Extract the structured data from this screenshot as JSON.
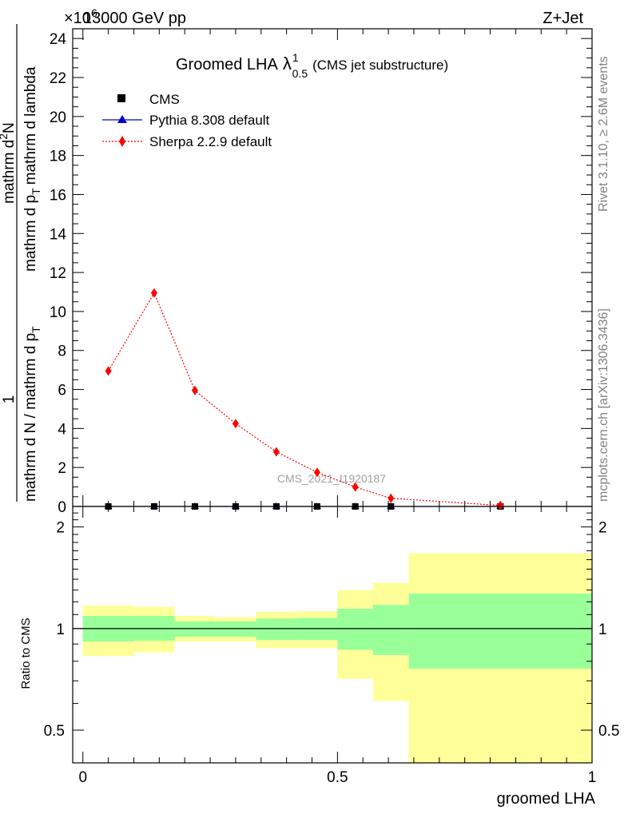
{
  "header": {
    "left": "13000 GeV pp",
    "right": "Z+Jet",
    "exponent": "×10",
    "exponent_power": "6"
  },
  "title": {
    "main": "Groomed LHA",
    "lambda": "λ",
    "lambda_sub": "0.5",
    "lambda_sup": "1",
    "note": "(CMS jet substructure)"
  },
  "side_labels": {
    "rivet": "Rivet 3.1.10, ≥ 2.6M events",
    "mcplots": "mcplots.cern.ch [arXiv:1306.3436]"
  },
  "watermark": "CMS_2021_I1920187",
  "chart_data": [
    {
      "type": "line",
      "panel": "main",
      "ylabel": "1 / (mathrm d N / mathrm d p_T) · mathrm d^2N / (mathrm d p_T mathrm d lambda)",
      "ylabel_parts": {
        "numerator": "1",
        "denominator": "mathrm d N / mathrm d p",
        "denominator_sub": "T",
        "right_num_a": "mathrm d",
        "right_num_b": "N",
        "right_num_sup": "2",
        "right_den_a": "mathrm d p",
        "right_den_sub": "T",
        "right_den_b": "mathrm d p",
        "right_den_c": "mathrm d lambda"
      },
      "ylim": [
        0,
        24.5
      ],
      "y_multiplier": 1000000,
      "yticks": [
        0,
        2,
        4,
        6,
        8,
        10,
        12,
        14,
        16,
        18,
        20,
        22,
        24
      ],
      "xlim": [
        -0.02,
        1.0
      ],
      "legend_position": "top-left",
      "legend": [
        {
          "name": "CMS",
          "marker": "square",
          "color": "#000000"
        },
        {
          "name": "Pythia 8.308 default",
          "marker": "triangle",
          "color": "#0000cc"
        },
        {
          "name": "Sherpa 2.2.9 default",
          "marker": "diamond",
          "color": "#ff0000"
        }
      ],
      "bin_edges": [
        0.0,
        0.1,
        0.18,
        0.26,
        0.34,
        0.42,
        0.5,
        0.57,
        0.64,
        1.0
      ],
      "series": [
        {
          "name": "CMS",
          "x": [
            0.05,
            0.14,
            0.22,
            0.3,
            0.38,
            0.46,
            0.535,
            0.605,
            0.82
          ],
          "values": [
            0,
            0,
            0,
            0,
            0,
            0,
            0,
            0,
            0
          ]
        },
        {
          "name": "Pythia 8.308 default",
          "x": [
            0.05,
            0.14,
            0.22,
            0.3,
            0.38,
            0.46,
            0.535,
            0.605,
            0.82
          ],
          "values": [
            0,
            0,
            0,
            0,
            0,
            0,
            0,
            0,
            0
          ]
        },
        {
          "name": "Sherpa 2.2.9 default",
          "x": [
            0.05,
            0.14,
            0.22,
            0.3,
            0.38,
            0.46,
            0.535,
            0.605,
            0.82
          ],
          "values": [
            6.95,
            10.95,
            5.95,
            4.25,
            2.8,
            1.75,
            1.0,
            0.42,
            0.05
          ]
        }
      ]
    },
    {
      "type": "area",
      "panel": "ratio",
      "ylabel": "Ratio to CMS",
      "xlabel": "groomed LHA",
      "ylim": [
        0.4,
        2.3
      ],
      "log_scale": true,
      "yticks": [
        0.5,
        1,
        2
      ],
      "xticks": [
        0,
        0.5,
        1
      ],
      "xlim": [
        -0.02,
        1.0
      ],
      "reference_line": 1,
      "bin_edges": [
        0.0,
        0.1,
        0.18,
        0.26,
        0.34,
        0.42,
        0.5,
        0.57,
        0.64,
        1.0
      ],
      "bands": [
        {
          "name": "stat",
          "color": "#99ff99",
          "low": [
            0.915,
            0.92,
            0.945,
            0.945,
            0.925,
            0.925,
            0.865,
            0.835,
            0.76,
            0.76
          ],
          "high": [
            1.09,
            1.09,
            1.05,
            1.05,
            1.07,
            1.075,
            1.145,
            1.175,
            1.27,
            1.27
          ]
        },
        {
          "name": "total",
          "color": "#ffff99",
          "low": [
            0.83,
            0.85,
            0.915,
            0.915,
            0.875,
            0.875,
            0.71,
            0.61,
            0.35,
            0.35
          ],
          "high": [
            1.17,
            1.16,
            1.09,
            1.08,
            1.12,
            1.125,
            1.3,
            1.365,
            1.67,
            1.67
          ]
        }
      ]
    }
  ]
}
